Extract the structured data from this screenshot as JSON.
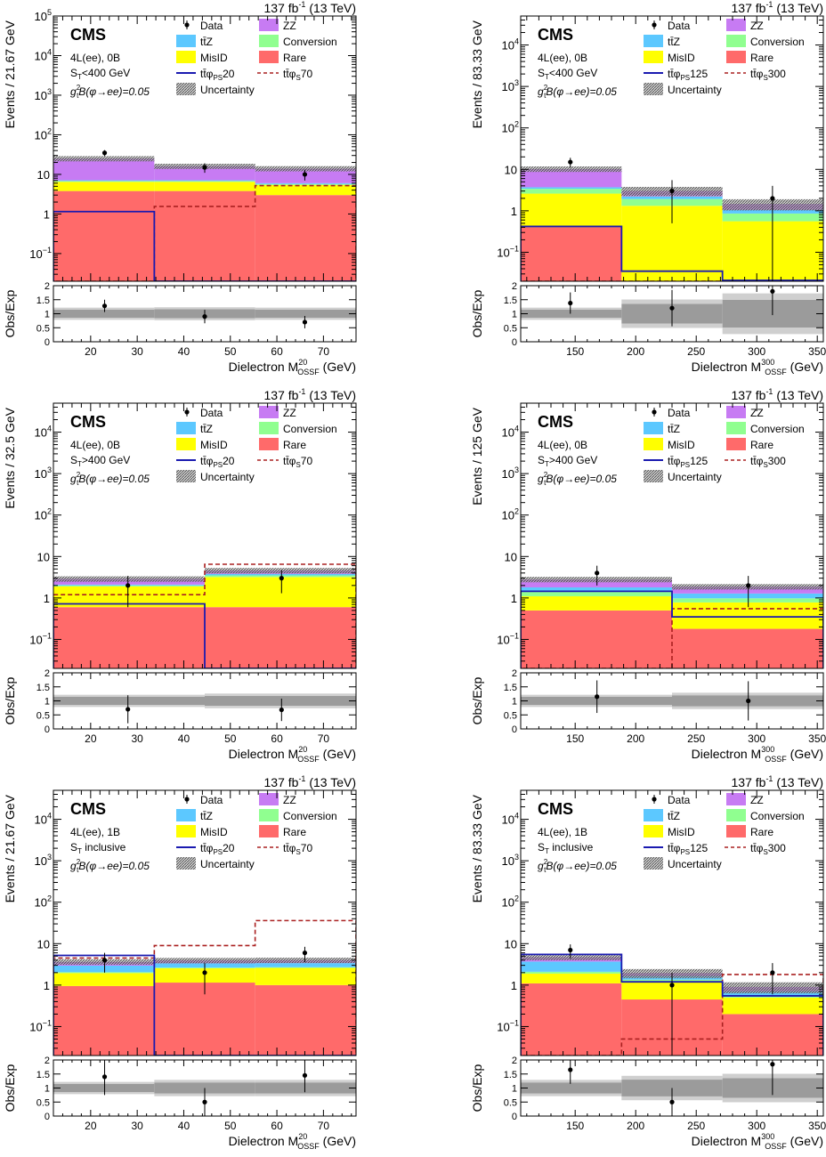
{
  "lumi": "137 fb",
  "lumi_sup": "-1",
  "lumi_tail": " (13 TeV)",
  "cms_label": "CMS",
  "coupling_label": "g",
  "coupling_sub": "t",
  "coupling_sup": "2",
  "coupling_tail": "B(φ→ee)=0.05",
  "ratio_ylabel": "Obs/Exp",
  "xlabel_main": "Dielectron M",
  "xlabel_sub": "OSSF",
  "xlabel_unit": " (GeV)",
  "legend_labels": {
    "data": "Data",
    "zz": "ZZ",
    "ttz": "tt̄Z",
    "conv": "Conversion",
    "misid": "MisID",
    "rare": "Rare",
    "unc": "Uncertainty",
    "tt": "tt̄φ",
    "ps": "PS",
    "s": "S"
  },
  "colors": {
    "zz": "#c77bf3",
    "ttz": "#5cc8ff",
    "conv": "#90ff90",
    "misid": "#ffff00",
    "rare": "#ff6a6a",
    "ps_line": "#1a1ab0",
    "s_line": "#aa2020"
  },
  "chart_data": [
    {
      "type": "bar",
      "stacked": true,
      "ylog": true,
      "channel": "4L(ee), 0B",
      "st_label": "S",
      "st_sub": "T",
      "st_tail": "<400 GeV",
      "ylabel": "Events / 21.67 GeV",
      "mass_sup": "20",
      "xlim": [
        12,
        77
      ],
      "ylim": [
        0.02,
        100000
      ],
      "ratio_ylim": [
        0,
        2
      ],
      "xticks": [
        20,
        30,
        40,
        50,
        60,
        70
      ],
      "yticks": [
        {
          "v": 0.1,
          "l": "10",
          "s": "−1"
        },
        {
          "v": 1,
          "l": "1",
          "s": ""
        },
        {
          "v": 10,
          "l": "10",
          "s": ""
        },
        {
          "v": 100,
          "l": "10",
          "s": "2"
        },
        {
          "v": 1000,
          "l": "10",
          "s": "3"
        },
        {
          "v": 10000,
          "l": "10",
          "s": "4"
        },
        {
          "v": 100000,
          "l": "10",
          "s": "5"
        }
      ],
      "bin_edges": [
        12,
        33.67,
        55.33,
        77
      ],
      "stack": [
        {
          "name": "Rare",
          "key": "rare",
          "values": [
            3.8,
            3.8,
            3.0
          ]
        },
        {
          "name": "MisID",
          "key": "misid",
          "values": [
            2.7,
            2.7,
            2.4
          ]
        },
        {
          "name": "Conversion",
          "key": "conv",
          "values": [
            0.3,
            0.3,
            0.3
          ]
        },
        {
          "name": "ttZ",
          "key": "ttz",
          "values": [
            0.3,
            0.3,
            0.3
          ]
        },
        {
          "name": "ZZ",
          "key": "zz",
          "values": [
            18,
            9,
            8
          ]
        }
      ],
      "unc_rel": [
        0.15,
        0.15,
        0.15
      ],
      "data": [
        {
          "x": 23,
          "y": 35,
          "err": 6
        },
        {
          "x": 44.5,
          "y": 15,
          "err": 4
        },
        {
          "x": 66,
          "y": 10,
          "err": 3
        }
      ],
      "signal_ps": {
        "mass": "20",
        "values": [
          1.15,
          0.001,
          0.001
        ]
      },
      "signal_s": {
        "mass": "70",
        "values": [
          0.001,
          1.55,
          5.2
        ]
      },
      "ratio": [
        {
          "x": 23,
          "y": 1.28,
          "err": 0.22
        },
        {
          "x": 44.5,
          "y": 0.9,
          "err": 0.24
        },
        {
          "x": 66,
          "y": 0.7,
          "err": 0.22
        }
      ],
      "ratio_band_rel": [
        0.15,
        0.16,
        0.15
      ]
    },
    {
      "type": "bar",
      "stacked": true,
      "ylog": true,
      "channel": "4L(ee), 0B",
      "st_label": "S",
      "st_sub": "T",
      "st_tail": "<400 GeV",
      "ylabel": "Events / 83.33 GeV",
      "mass_sup": "300",
      "xlim": [
        105,
        355
      ],
      "ylim": [
        0.02,
        50000
      ],
      "ratio_ylim": [
        0,
        2
      ],
      "xticks": [
        150,
        200,
        250,
        300,
        350
      ],
      "yticks": [
        {
          "v": 0.1,
          "l": "10",
          "s": "−1"
        },
        {
          "v": 1,
          "l": "1",
          "s": ""
        },
        {
          "v": 10,
          "l": "10",
          "s": ""
        },
        {
          "v": 100,
          "l": "10",
          "s": "2"
        },
        {
          "v": 1000,
          "l": "10",
          "s": "3"
        },
        {
          "v": 10000,
          "l": "10",
          "s": "4"
        }
      ],
      "bin_edges": [
        105,
        188.33,
        271.67,
        355
      ],
      "stack": [
        {
          "name": "Rare",
          "key": "rare",
          "values": [
            0.4,
            0.02,
            0.01
          ]
        },
        {
          "name": "MisID",
          "key": "misid",
          "values": [
            2.2,
            1.3,
            0.55
          ]
        },
        {
          "name": "Conversion",
          "key": "conv",
          "values": [
            0.8,
            0.6,
            0.3
          ]
        },
        {
          "name": "ttZ",
          "key": "ttz",
          "values": [
            0.3,
            0.3,
            0.2
          ]
        },
        {
          "name": "ZZ",
          "key": "zz",
          "values": [
            6.5,
            0.8,
            0.4
          ]
        }
      ],
      "unc_rel": [
        0.15,
        0.25,
        0.3
      ],
      "data": [
        {
          "x": 146,
          "y": 15,
          "err": 4
        },
        {
          "x": 230,
          "y": 3,
          "err": 2.5
        },
        {
          "x": 313,
          "y": 2,
          "err": 2
        }
      ],
      "signal_ps": {
        "mass": "125",
        "values": [
          0.42,
          0.035,
          0.021
        ]
      },
      "signal_s": {
        "mass": "300",
        "values": [
          0.001,
          0.001,
          0.001
        ]
      },
      "ratio": [
        {
          "x": 146,
          "y": 1.38,
          "err": 0.38
        },
        {
          "x": 230,
          "y": 1.2,
          "err": 0.65
        },
        {
          "x": 313,
          "y": 1.8,
          "err": 0.85
        }
      ],
      "ratio_band_rel": [
        0.15,
        0.35,
        0.5
      ]
    },
    {
      "type": "bar",
      "stacked": true,
      "ylog": true,
      "channel": "4L(ee), 0B",
      "st_label": "S",
      "st_sub": "T",
      "st_tail": ">400 GeV",
      "ylabel": "Events / 32.5 GeV",
      "mass_sup": "20",
      "xlim": [
        12,
        77
      ],
      "ylim": [
        0.02,
        50000
      ],
      "ratio_ylim": [
        0,
        2
      ],
      "xticks": [
        20,
        30,
        40,
        50,
        60,
        70
      ],
      "yticks": [
        {
          "v": 0.1,
          "l": "10",
          "s": "−1"
        },
        {
          "v": 1,
          "l": "1",
          "s": ""
        },
        {
          "v": 10,
          "l": "10",
          "s": ""
        },
        {
          "v": 100,
          "l": "10",
          "s": "2"
        },
        {
          "v": 1000,
          "l": "10",
          "s": "3"
        },
        {
          "v": 10000,
          "l": "10",
          "s": "4"
        }
      ],
      "bin_edges": [
        12,
        44.5,
        77
      ],
      "stack": [
        {
          "name": "Rare",
          "key": "rare",
          "values": [
            0.6,
            0.6
          ]
        },
        {
          "name": "MisID",
          "key": "misid",
          "values": [
            1.3,
            2.6
          ]
        },
        {
          "name": "Conversion",
          "key": "conv",
          "values": [
            0.1,
            0.3
          ]
        },
        {
          "name": "ttZ",
          "key": "ttz",
          "values": [
            0.1,
            0.3
          ]
        },
        {
          "name": "ZZ",
          "key": "zz",
          "values": [
            0.8,
            0.8
          ]
        }
      ],
      "unc_rel": [
        0.15,
        0.15
      ],
      "data": [
        {
          "x": 28,
          "y": 2,
          "err": 1.4
        },
        {
          "x": 61,
          "y": 3,
          "err": 1.7
        }
      ],
      "signal_ps": {
        "mass": "20",
        "values": [
          0.72,
          0.001
        ]
      },
      "signal_s": {
        "mass": "70",
        "values": [
          1.2,
          6.5
        ]
      },
      "ratio": [
        {
          "x": 28,
          "y": 0.7,
          "err": 0.5
        },
        {
          "x": 61,
          "y": 0.68,
          "err": 0.4
        }
      ],
      "ratio_band_rel": [
        0.15,
        0.18
      ]
    },
    {
      "type": "bar",
      "stacked": true,
      "ylog": true,
      "channel": "4L(ee), 0B",
      "st_label": "S",
      "st_sub": "T",
      "st_tail": ">400 GeV",
      "ylabel": "Events / 125 GeV",
      "mass_sup": "300",
      "xlim": [
        105,
        355
      ],
      "ylim": [
        0.02,
        50000
      ],
      "ratio_ylim": [
        0,
        2
      ],
      "xticks": [
        150,
        200,
        250,
        300,
        350
      ],
      "yticks": [
        {
          "v": 0.1,
          "l": "10",
          "s": "−1"
        },
        {
          "v": 1,
          "l": "1",
          "s": ""
        },
        {
          "v": 10,
          "l": "10",
          "s": ""
        },
        {
          "v": 100,
          "l": "10",
          "s": "2"
        },
        {
          "v": 1000,
          "l": "10",
          "s": "3"
        },
        {
          "v": 10000,
          "l": "10",
          "s": "4"
        }
      ],
      "bin_edges": [
        105,
        230,
        355
      ],
      "stack": [
        {
          "name": "Rare",
          "key": "rare",
          "values": [
            0.5,
            0.18
          ]
        },
        {
          "name": "MisID",
          "key": "misid",
          "values": [
            0.6,
            0.6
          ]
        },
        {
          "name": "Conversion",
          "key": "conv",
          "values": [
            0.3,
            0.2
          ]
        },
        {
          "name": "ttZ",
          "key": "ttz",
          "values": [
            0.4,
            0.3
          ]
        },
        {
          "name": "ZZ",
          "key": "zz",
          "values": [
            1.0,
            0.6
          ]
        }
      ],
      "unc_rel": [
        0.15,
        0.15
      ],
      "data": [
        {
          "x": 168,
          "y": 4,
          "err": 2
        },
        {
          "x": 293,
          "y": 2,
          "err": 1.4
        }
      ],
      "signal_ps": {
        "mass": "125",
        "values": [
          1.45,
          0.35
        ]
      },
      "signal_s": {
        "mass": "300",
        "values": [
          0.001,
          0.55
        ]
      },
      "ratio": [
        {
          "x": 168,
          "y": 1.15,
          "err": 0.58
        },
        {
          "x": 293,
          "y": 1.0,
          "err": 0.7
        }
      ],
      "ratio_band_rel": [
        0.15,
        0.2
      ]
    },
    {
      "type": "bar",
      "stacked": true,
      "ylog": true,
      "channel": "4L(ee), 1B",
      "st_label": "S",
      "st_sub": "T",
      "st_tail": " inclusive",
      "ylabel": "Events / 21.67 GeV",
      "mass_sup": "20",
      "xlim": [
        12,
        77
      ],
      "ylim": [
        0.02,
        50000
      ],
      "ratio_ylim": [
        0,
        2
      ],
      "xticks": [
        20,
        30,
        40,
        50,
        60,
        70
      ],
      "yticks": [
        {
          "v": 0.1,
          "l": "10",
          "s": "−1"
        },
        {
          "v": 1,
          "l": "1",
          "s": ""
        },
        {
          "v": 10,
          "l": "10",
          "s": ""
        },
        {
          "v": 100,
          "l": "10",
          "s": "2"
        },
        {
          "v": 1000,
          "l": "10",
          "s": "3"
        },
        {
          "v": 10000,
          "l": "10",
          "s": "4"
        }
      ],
      "bin_edges": [
        12,
        33.67,
        55.33,
        77
      ],
      "stack": [
        {
          "name": "Rare",
          "key": "rare",
          "values": [
            0.95,
            1.15,
            1.0
          ]
        },
        {
          "name": "MisID",
          "key": "misid",
          "values": [
            1.0,
            1.4,
            1.6
          ]
        },
        {
          "name": "Conversion",
          "key": "conv",
          "values": [
            0.1,
            0.1,
            0.1
          ]
        },
        {
          "name": "ttZ",
          "key": "ttz",
          "values": [
            0.9,
            0.7,
            0.7
          ]
        },
        {
          "name": "ZZ",
          "key": "zz",
          "values": [
            0.7,
            0.6,
            0.6
          ]
        }
      ],
      "unc_rel": [
        0.15,
        0.15,
        0.15
      ],
      "data": [
        {
          "x": 23,
          "y": 4,
          "err": 2
        },
        {
          "x": 44.5,
          "y": 2,
          "err": 1.4
        },
        {
          "x": 66,
          "y": 6,
          "err": 2.4
        }
      ],
      "signal_ps": {
        "mass": "20",
        "values": [
          5.2,
          0.001,
          0.001
        ]
      },
      "signal_s": {
        "mass": "70",
        "values": [
          4.5,
          9,
          36
        ]
      },
      "ratio": [
        {
          "x": 23,
          "y": 1.4,
          "err": 0.65
        },
        {
          "x": 44.5,
          "y": 0.5,
          "err": 0.5
        },
        {
          "x": 66,
          "y": 1.45,
          "err": 0.6
        }
      ],
      "ratio_band_rel": [
        0.15,
        0.2,
        0.2
      ]
    },
    {
      "type": "bar",
      "stacked": true,
      "ylog": true,
      "channel": "4L(ee), 1B",
      "st_label": "S",
      "st_sub": "T",
      "st_tail": " inclusive",
      "ylabel": "Events / 83.33 GeV",
      "mass_sup": "300",
      "xlim": [
        105,
        355
      ],
      "ylim": [
        0.02,
        50000
      ],
      "ratio_ylim": [
        0,
        2
      ],
      "xticks": [
        150,
        200,
        250,
        300,
        350
      ],
      "yticks": [
        {
          "v": 0.1,
          "l": "10",
          "s": "−1"
        },
        {
          "v": 1,
          "l": "1",
          "s": ""
        },
        {
          "v": 10,
          "l": "10",
          "s": ""
        },
        {
          "v": 100,
          "l": "10",
          "s": "2"
        },
        {
          "v": 1000,
          "l": "10",
          "s": "3"
        },
        {
          "v": 10000,
          "l": "10",
          "s": "4"
        }
      ],
      "bin_edges": [
        105,
        188.33,
        271.67,
        355
      ],
      "stack": [
        {
          "name": "Rare",
          "key": "rare",
          "values": [
            1.1,
            0.45,
            0.2
          ]
        },
        {
          "name": "MisID",
          "key": "misid",
          "values": [
            0.8,
            0.8,
            0.3
          ]
        },
        {
          "name": "Conversion",
          "key": "conv",
          "values": [
            0.2,
            0.1,
            0.05
          ]
        },
        {
          "name": "ttZ",
          "key": "ttz",
          "values": [
            1.6,
            0.3,
            0.15
          ]
        },
        {
          "name": "ZZ",
          "key": "zz",
          "values": [
            1.0,
            0.3,
            0.2
          ]
        }
      ],
      "unc_rel": [
        0.15,
        0.25,
        0.3
      ],
      "data": [
        {
          "x": 146,
          "y": 7,
          "err": 2.6
        },
        {
          "x": 230,
          "y": 1,
          "err": 1
        },
        {
          "x": 313,
          "y": 2,
          "err": 1.4
        }
      ],
      "signal_ps": {
        "mass": "125",
        "values": [
          5.5,
          1.2,
          0.55
        ]
      },
      "signal_s": {
        "mass": "300",
        "values": [
          0.001,
          0.05,
          1.8
        ]
      },
      "ratio": [
        {
          "x": 146,
          "y": 1.65,
          "err": 0.5
        },
        {
          "x": 230,
          "y": 0.5,
          "err": 0.5
        },
        {
          "x": 313,
          "y": 1.85,
          "err": 1.1
        }
      ],
      "ratio_band_rel": [
        0.2,
        0.3,
        0.35
      ]
    }
  ]
}
